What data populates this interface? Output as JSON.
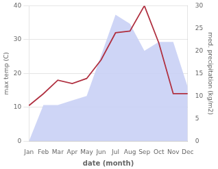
{
  "chart_data": {
    "type": "line",
    "categories": [
      "Jan",
      "Feb",
      "Mar",
      "Apr",
      "May",
      "Jun",
      "Jul",
      "Aug",
      "Sep",
      "Oct",
      "Nov",
      "Dec"
    ],
    "series": [
      {
        "type": "area",
        "color": "#c5cef5",
        "axis": "y2",
        "values": [
          0,
          8,
          8,
          9,
          10,
          19,
          28,
          26,
          20,
          22,
          22,
          12
        ]
      },
      {
        "type": "line",
        "color": "#b03040",
        "values": [
          10.5,
          14,
          18,
          17,
          18.5,
          24,
          32,
          32.5,
          40,
          29,
          14,
          14
        ]
      }
    ],
    "xlabel": "date (month)",
    "ylabel": "max temp (C)",
    "y2label": "med. precipitation (kg/m2)",
    "ylim": [
      0,
      40
    ],
    "yticks": [
      0,
      10,
      20,
      30,
      40
    ],
    "y2lim": [
      0,
      30
    ],
    "y2ticks": [
      0,
      5,
      10,
      15,
      20,
      25,
      30
    ],
    "grid": true
  }
}
